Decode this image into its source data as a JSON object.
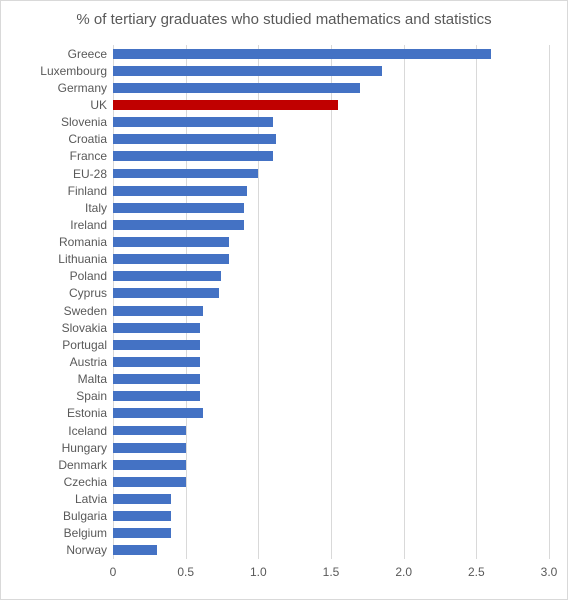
{
  "chart": {
    "type": "bar-horizontal",
    "title": "% of tertiary graduates who studied mathematics and statistics",
    "title_fontsize": 15,
    "title_color": "#595959",
    "categories": [
      "Greece",
      "Luxembourg",
      "Germany",
      "UK",
      "Slovenia",
      "Croatia",
      "France",
      "EU-28",
      "Finland",
      "Italy",
      "Ireland",
      "Romania",
      "Lithuania",
      "Poland",
      "Cyprus",
      "Sweden",
      "Slovakia",
      "Portugal",
      "Austria",
      "Malta",
      "Spain",
      "Estonia",
      "Iceland",
      "Hungary",
      "Denmark",
      "Czechia",
      "Latvia",
      "Bulgaria",
      "Belgium",
      "Norway"
    ],
    "values": [
      2.6,
      1.85,
      1.7,
      1.55,
      1.1,
      1.12,
      1.1,
      1.0,
      0.92,
      0.9,
      0.9,
      0.8,
      0.8,
      0.74,
      0.73,
      0.62,
      0.6,
      0.6,
      0.6,
      0.6,
      0.6,
      0.62,
      0.5,
      0.5,
      0.5,
      0.5,
      0.4,
      0.4,
      0.4,
      0.3
    ],
    "bar_colors": [
      "#4472c4",
      "#4472c4",
      "#4472c4",
      "#c00000",
      "#4472c4",
      "#4472c4",
      "#4472c4",
      "#4472c4",
      "#4472c4",
      "#4472c4",
      "#4472c4",
      "#4472c4",
      "#4472c4",
      "#4472c4",
      "#4472c4",
      "#4472c4",
      "#4472c4",
      "#4472c4",
      "#4472c4",
      "#4472c4",
      "#4472c4",
      "#4472c4",
      "#4472c4",
      "#4472c4",
      "#4472c4",
      "#4472c4",
      "#4472c4",
      "#4472c4",
      "#4472c4",
      "#4472c4"
    ],
    "xlim": [
      0,
      3.0
    ],
    "xtick_step": 0.5,
    "xtick_labels": [
      "0",
      "0.5",
      "1.0",
      "1.5",
      "2.0",
      "2.5",
      "3.0"
    ],
    "background_color": "#ffffff",
    "grid_color": "#d9d9d9",
    "axis_color": "#d9d9d9",
    "bar_width_ratio": 0.58,
    "label_fontsize": 12,
    "tick_fontsize": 12,
    "font_color": "#595959"
  }
}
